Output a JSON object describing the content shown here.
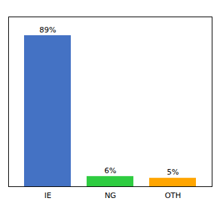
{
  "chart_data": {
    "type": "bar",
    "categories": [
      "IE",
      "NG",
      "OTH"
    ],
    "values": [
      89,
      6,
      5
    ],
    "value_labels": [
      "89%",
      "6%",
      "5%"
    ],
    "colors": [
      "#4472C4",
      "#2ECC40",
      "#FFA500"
    ],
    "ylim": [
      0,
      100
    ],
    "data_labels": true,
    "tick_labels": "x",
    "grid": false
  }
}
